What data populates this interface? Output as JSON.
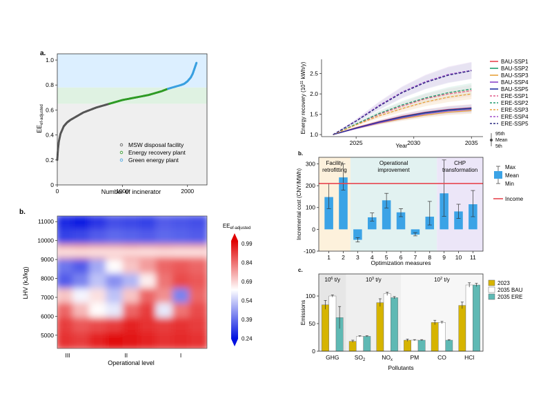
{
  "colors": {
    "gray": "#555555",
    "green": "#2e9a24",
    "blue": "#3aa0e0",
    "bar": "#3ba3e6",
    "income": "#e8454f",
    "bau": "#1f2fa0",
    "ere": "#6a2a9a",
    "y2023": "#d6b400",
    "y2035bau": "#ffffff",
    "y2035ere": "#5fb9b4"
  },
  "chart_data": [
    {
      "type": "scatter",
      "panel": "a.",
      "title": "",
      "xlabel": "Number of incinerator",
      "ylabel": "EE",
      "ylabel_sub": "ef-adjusted",
      "xlim": [
        0,
        2300
      ],
      "ylim": [
        0,
        1.05
      ],
      "xticks": [
        "0",
        "1000",
        "2000"
      ],
      "xtick_values": [
        0,
        1000,
        2000
      ],
      "yticks": [
        "0",
        "0.2",
        "0.4",
        "0.6",
        "0.8",
        "1.0"
      ],
      "ytick_values": [
        0,
        0.2,
        0.4,
        0.6,
        0.8,
        1.0
      ],
      "bands": [
        {
          "name": "green-energy-band",
          "from": 0.78,
          "to": 1.05,
          "color": "#dcefff"
        },
        {
          "name": "energy-recovery-band",
          "from": 0.65,
          "to": 0.78,
          "color": "#dff2e2"
        },
        {
          "name": "disposal-band",
          "from": 0,
          "to": 0.65,
          "color": "#efefef"
        }
      ],
      "series": [
        {
          "name": "MSW disposal facility",
          "color": "#555555",
          "x": [
            0,
            10,
            25,
            50,
            100,
            150,
            200,
            300,
            400,
            500,
            600,
            700,
            800
          ],
          "y": [
            0.2,
            0.28,
            0.35,
            0.41,
            0.47,
            0.5,
            0.52,
            0.55,
            0.58,
            0.6,
            0.62,
            0.635,
            0.65
          ]
        },
        {
          "name": "Energy recovery plant",
          "color": "#2e9a24",
          "x": [
            800,
            900,
            1000,
            1100,
            1200,
            1300,
            1400,
            1500,
            1600,
            1700
          ],
          "y": [
            0.65,
            0.665,
            0.68,
            0.69,
            0.7,
            0.71,
            0.72,
            0.735,
            0.75,
            0.77
          ]
        },
        {
          "name": "Green energy plant",
          "color": "#3aa0e0",
          "x": [
            1700,
            1800,
            1900,
            1950,
            2000,
            2050,
            2080,
            2100,
            2120,
            2140
          ],
          "y": [
            0.77,
            0.785,
            0.8,
            0.81,
            0.83,
            0.86,
            0.89,
            0.92,
            0.95,
            0.98
          ]
        }
      ]
    },
    {
      "type": "heatmap",
      "panel": "b.",
      "xlabel": "Operational level",
      "ylabel": "LHV (kJ/kg)",
      "xticks": [
        "III",
        "II",
        "I"
      ],
      "yticks": [
        "5000",
        "6000",
        "7000",
        "8000",
        "9000",
        "10000",
        "11000"
      ],
      "ylim": [
        4300,
        11300
      ],
      "colorbar_title": "EE",
      "colorbar_sub": "ef-adjusted",
      "colorbar_ticks": [
        "0.99",
        "0.84",
        "0.69",
        "0.54",
        "0.39",
        "0.24"
      ],
      "grid": [
        [
          0.28,
          0.26,
          0.3,
          0.34,
          0.33,
          0.32,
          0.36,
          0.35,
          0.34
        ],
        [
          0.32,
          0.33,
          0.36,
          0.38,
          0.37,
          0.36,
          0.38,
          0.37,
          0.36
        ],
        [
          0.74,
          0.75,
          0.74,
          0.74,
          0.75,
          0.74,
          0.75,
          0.74,
          0.74
        ],
        [
          0.4,
          0.36,
          0.48,
          0.62,
          0.7,
          0.76,
          0.84,
          0.86,
          0.84
        ],
        [
          0.36,
          0.42,
          0.52,
          0.44,
          0.5,
          0.64,
          0.82,
          0.88,
          0.86
        ],
        [
          0.7,
          0.6,
          0.66,
          0.52,
          0.7,
          0.84,
          0.78,
          0.42,
          0.84
        ],
        [
          0.84,
          0.72,
          0.62,
          0.58,
          0.84,
          0.9,
          0.58,
          0.82,
          0.88
        ],
        [
          0.9,
          0.86,
          0.88,
          0.9,
          0.94,
          0.92,
          0.9,
          0.92,
          0.9
        ],
        [
          0.92,
          0.9,
          0.94,
          0.98,
          0.96,
          0.94,
          0.92,
          0.93,
          0.92
        ]
      ]
    },
    {
      "type": "line",
      "panel": "",
      "xlabel": "Year",
      "ylabel": "Energy recovery (10",
      "ylabel_sup": "11",
      "ylabel_end": " kWh/y)",
      "xlim": [
        2022,
        2036
      ],
      "ylim": [
        0.95,
        2.85
      ],
      "xticks": [
        "2025",
        "2030",
        "2035"
      ],
      "xtick_values": [
        2025,
        2030,
        2035
      ],
      "yticks": [
        "1.0",
        "1.5",
        "2.0",
        "2.5"
      ],
      "ytick_values": [
        1.0,
        1.5,
        2.0,
        2.5
      ],
      "x": [
        2023,
        2025,
        2027,
        2029,
        2031,
        2033,
        2035
      ],
      "series": [
        {
          "name": "BAU-SSP1",
          "style": "solid",
          "color": "#e8454f",
          "band": "#f6c8cc",
          "values": [
            1.0,
            1.17,
            1.32,
            1.45,
            1.55,
            1.62,
            1.66
          ]
        },
        {
          "name": "BAU-SSP2",
          "style": "solid",
          "color": "#1e9b6e",
          "band": "#cfe9dc",
          "values": [
            1.0,
            1.16,
            1.3,
            1.42,
            1.52,
            1.59,
            1.63
          ]
        },
        {
          "name": "BAU-SSP3",
          "style": "solid",
          "color": "#e8a13a",
          "band": "#f6e1c2",
          "values": [
            1.0,
            1.15,
            1.28,
            1.39,
            1.48,
            1.55,
            1.59
          ]
        },
        {
          "name": "BAU-SSP4",
          "style": "solid",
          "color": "#8a45c8",
          "band": "#e4d3f2",
          "values": [
            1.0,
            1.15,
            1.29,
            1.41,
            1.51,
            1.58,
            1.62
          ]
        },
        {
          "name": "BAU-SSP5",
          "style": "solid",
          "color": "#1f2fa0",
          "band": "#d2d6ee",
          "values": [
            1.0,
            1.16,
            1.31,
            1.44,
            1.54,
            1.61,
            1.65
          ]
        },
        {
          "name": "ERE-SSP1",
          "style": "dashed",
          "color": "#e05a8a",
          "band": "#f4d1de",
          "values": [
            1.0,
            1.25,
            1.5,
            1.7,
            1.88,
            2.0,
            2.08
          ]
        },
        {
          "name": "ERE-SSP2",
          "style": "dashed",
          "color": "#1e9b6e",
          "band": "#d3ece3",
          "values": [
            1.0,
            1.26,
            1.52,
            1.73,
            1.9,
            2.03,
            2.12
          ]
        },
        {
          "name": "ERE-SSP3",
          "style": "dashed",
          "color": "#e8a13a",
          "band": "#f8e6cc",
          "values": [
            1.0,
            1.24,
            1.46,
            1.64,
            1.8,
            1.92,
            2.0
          ]
        },
        {
          "name": "ERE-SSP4",
          "style": "dashed",
          "color": "#a04ec8",
          "band": "#e9d8f3",
          "values": [
            1.0,
            1.34,
            1.72,
            2.05,
            2.3,
            2.48,
            2.58
          ]
        },
        {
          "name": "ERE-SSP5",
          "style": "dashed",
          "color": "#2a2a80",
          "band": "#dcdcec",
          "values": [
            1.0,
            1.33,
            1.7,
            2.03,
            2.28,
            2.46,
            2.57
          ]
        }
      ],
      "side_legend": [
        "95th",
        "Mean",
        "5th"
      ]
    },
    {
      "type": "bar",
      "panel": "b.",
      "xlabel": "Optimization measures",
      "ylabel": "Incremental cost (CNY/MWh)",
      "ylim": [
        -100,
        330
      ],
      "yticks": [
        "-100",
        "0",
        "100",
        "200",
        "300"
      ],
      "ytick_values": [
        -100,
        0,
        100,
        200,
        300
      ],
      "categories": [
        "1",
        "2",
        "3",
        "4",
        "5",
        "6",
        "7",
        "8",
        "9",
        "10",
        "11"
      ],
      "values": [
        148,
        238,
        -48,
        55,
        133,
        78,
        -24,
        58,
        165,
        82,
        115
      ],
      "max": [
        210,
        300,
        -38,
        75,
        165,
        95,
        -15,
        128,
        318,
        115,
        178
      ],
      "min": [
        95,
        180,
        -58,
        38,
        98,
        58,
        -30,
        20,
        60,
        50,
        58
      ],
      "income": 210,
      "regions": [
        {
          "label1": "Facility",
          "label2": "retrofitting",
          "from": 1,
          "to": 2,
          "color": "#fdf1dc"
        },
        {
          "label1": "Operational",
          "label2": "improvement",
          "from": 3,
          "to": 8,
          "color": "#e2f2f1"
        },
        {
          "label1": "CHP",
          "label2": "transformation",
          "from": 9,
          "to": 11,
          "color": "#ece6f8"
        }
      ],
      "legend": {
        "max": "Max",
        "mean": "Mean",
        "min": "Min",
        "income": "Income"
      }
    },
    {
      "type": "bar",
      "panel": "c.",
      "xlabel": "Pollutants",
      "ylabel": "Emissions",
      "ylim": [
        0,
        140
      ],
      "yticks": [
        "0",
        "50",
        "100"
      ],
      "ytick_values": [
        0,
        50,
        100
      ],
      "categories": [
        "GHG",
        "SO",
        "NO",
        "PM",
        "CO",
        "HCl"
      ],
      "category_subs": [
        "",
        "2",
        "x",
        "",
        "",
        ""
      ],
      "units": [
        {
          "label": "10",
          "sup": "6",
          "end": " t/y",
          "from": 0,
          "to": 0
        },
        {
          "label": "10",
          "sup": "3",
          "end": " t/y",
          "from": 1,
          "to": 2
        },
        {
          "label": "10",
          "sup": "2",
          "end": " t/y",
          "from": 3,
          "to": 5
        }
      ],
      "series": [
        {
          "name": "2023",
          "values": [
            84,
            18,
            88,
            20,
            52,
            83
          ],
          "err": [
            8,
            2,
            7,
            2,
            4,
            6
          ]
        },
        {
          "name": "2035 BAU",
          "values": [
            100,
            27,
            104,
            20,
            52,
            120
          ],
          "err": [
            2,
            1,
            3,
            1,
            2,
            4
          ]
        },
        {
          "name": "2035 ERE",
          "values": [
            61,
            27,
            97,
            20,
            20,
            120
          ],
          "err": [
            20,
            1,
            2,
            1,
            1,
            3
          ]
        }
      ]
    }
  ]
}
